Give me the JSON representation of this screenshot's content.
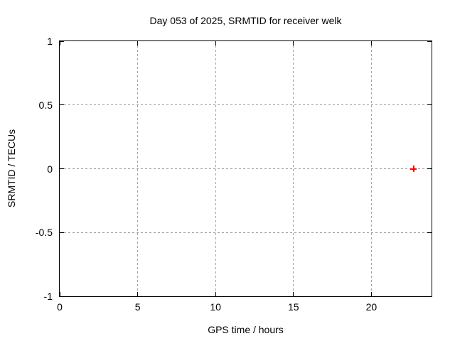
{
  "chart_data": {
    "type": "scatter",
    "title": "Day 053 of 2025, SRMTID for receiver welk",
    "xlabel": "GPS time / hours",
    "ylabel": "SRMTID / TECUs",
    "xlim": [
      0,
      23.86
    ],
    "ylim": [
      -1,
      1
    ],
    "xticks": [
      0,
      5,
      10,
      15,
      20
    ],
    "xtick_labels": [
      "0",
      "5",
      "10",
      "15",
      "20"
    ],
    "yticks": [
      -1,
      -0.5,
      0,
      0.5,
      1
    ],
    "ytick_labels": [
      "-1",
      "-0.5",
      "0",
      "0.5",
      "1"
    ],
    "grid": true,
    "series": [
      {
        "name": "SRMTID",
        "marker": "plus",
        "color": "#ff0000",
        "points": [
          {
            "x": 22.7,
            "y": 0.0
          }
        ]
      }
    ],
    "colors": {
      "axis": "#000000",
      "grid": "#a0a0a0",
      "text": "#000000",
      "background": "#ffffff"
    }
  }
}
